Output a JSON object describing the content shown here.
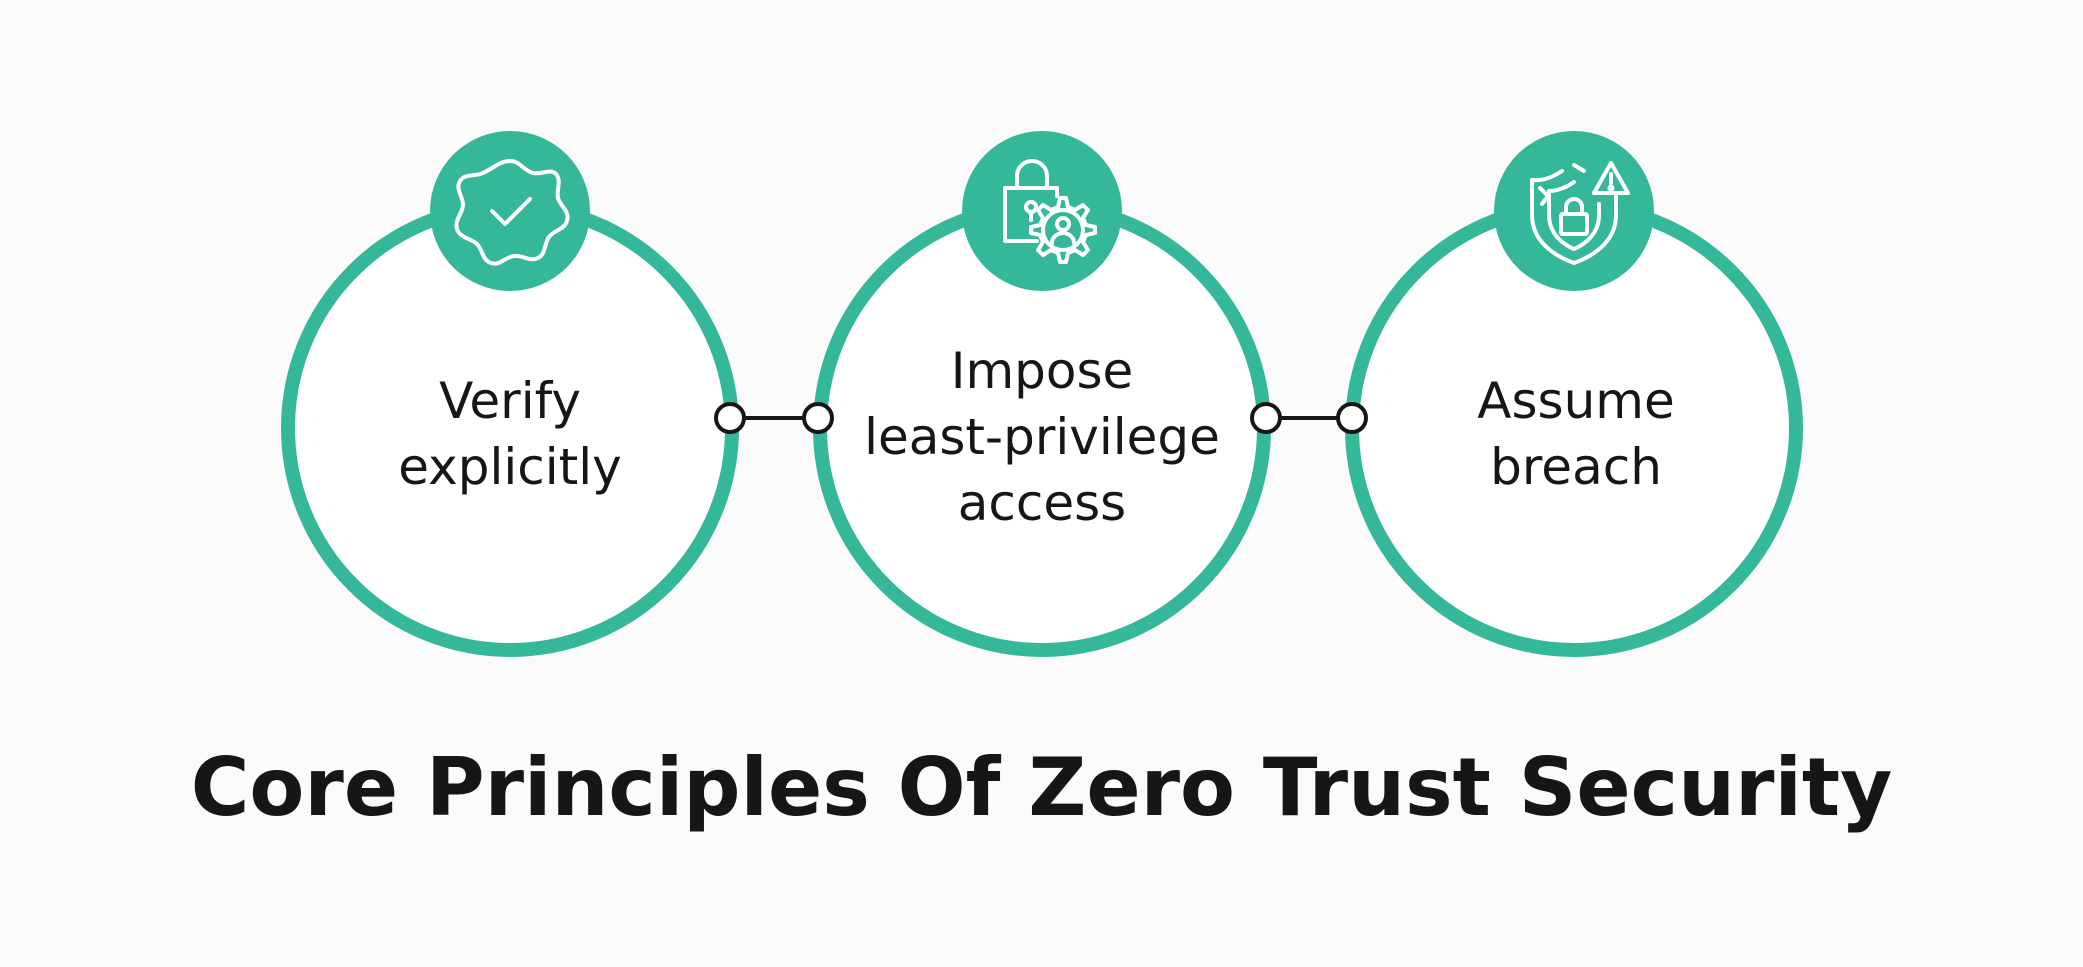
{
  "colors": {
    "accent": "#35b899",
    "text": "#161616",
    "background": "#fbfbfb",
    "connector": "#161616"
  },
  "principles": [
    {
      "lines": [
        "Verify",
        "explicitly"
      ],
      "icon": "verified-badge-check-icon"
    },
    {
      "lines": [
        "Impose",
        "least-privilege",
        "access"
      ],
      "icon": "lock-user-gear-icon"
    },
    {
      "lines": [
        "Assume",
        "breach"
      ],
      "icon": "shield-lock-warning-icon"
    }
  ],
  "title": "Core Principles Of Zero Trust Security"
}
